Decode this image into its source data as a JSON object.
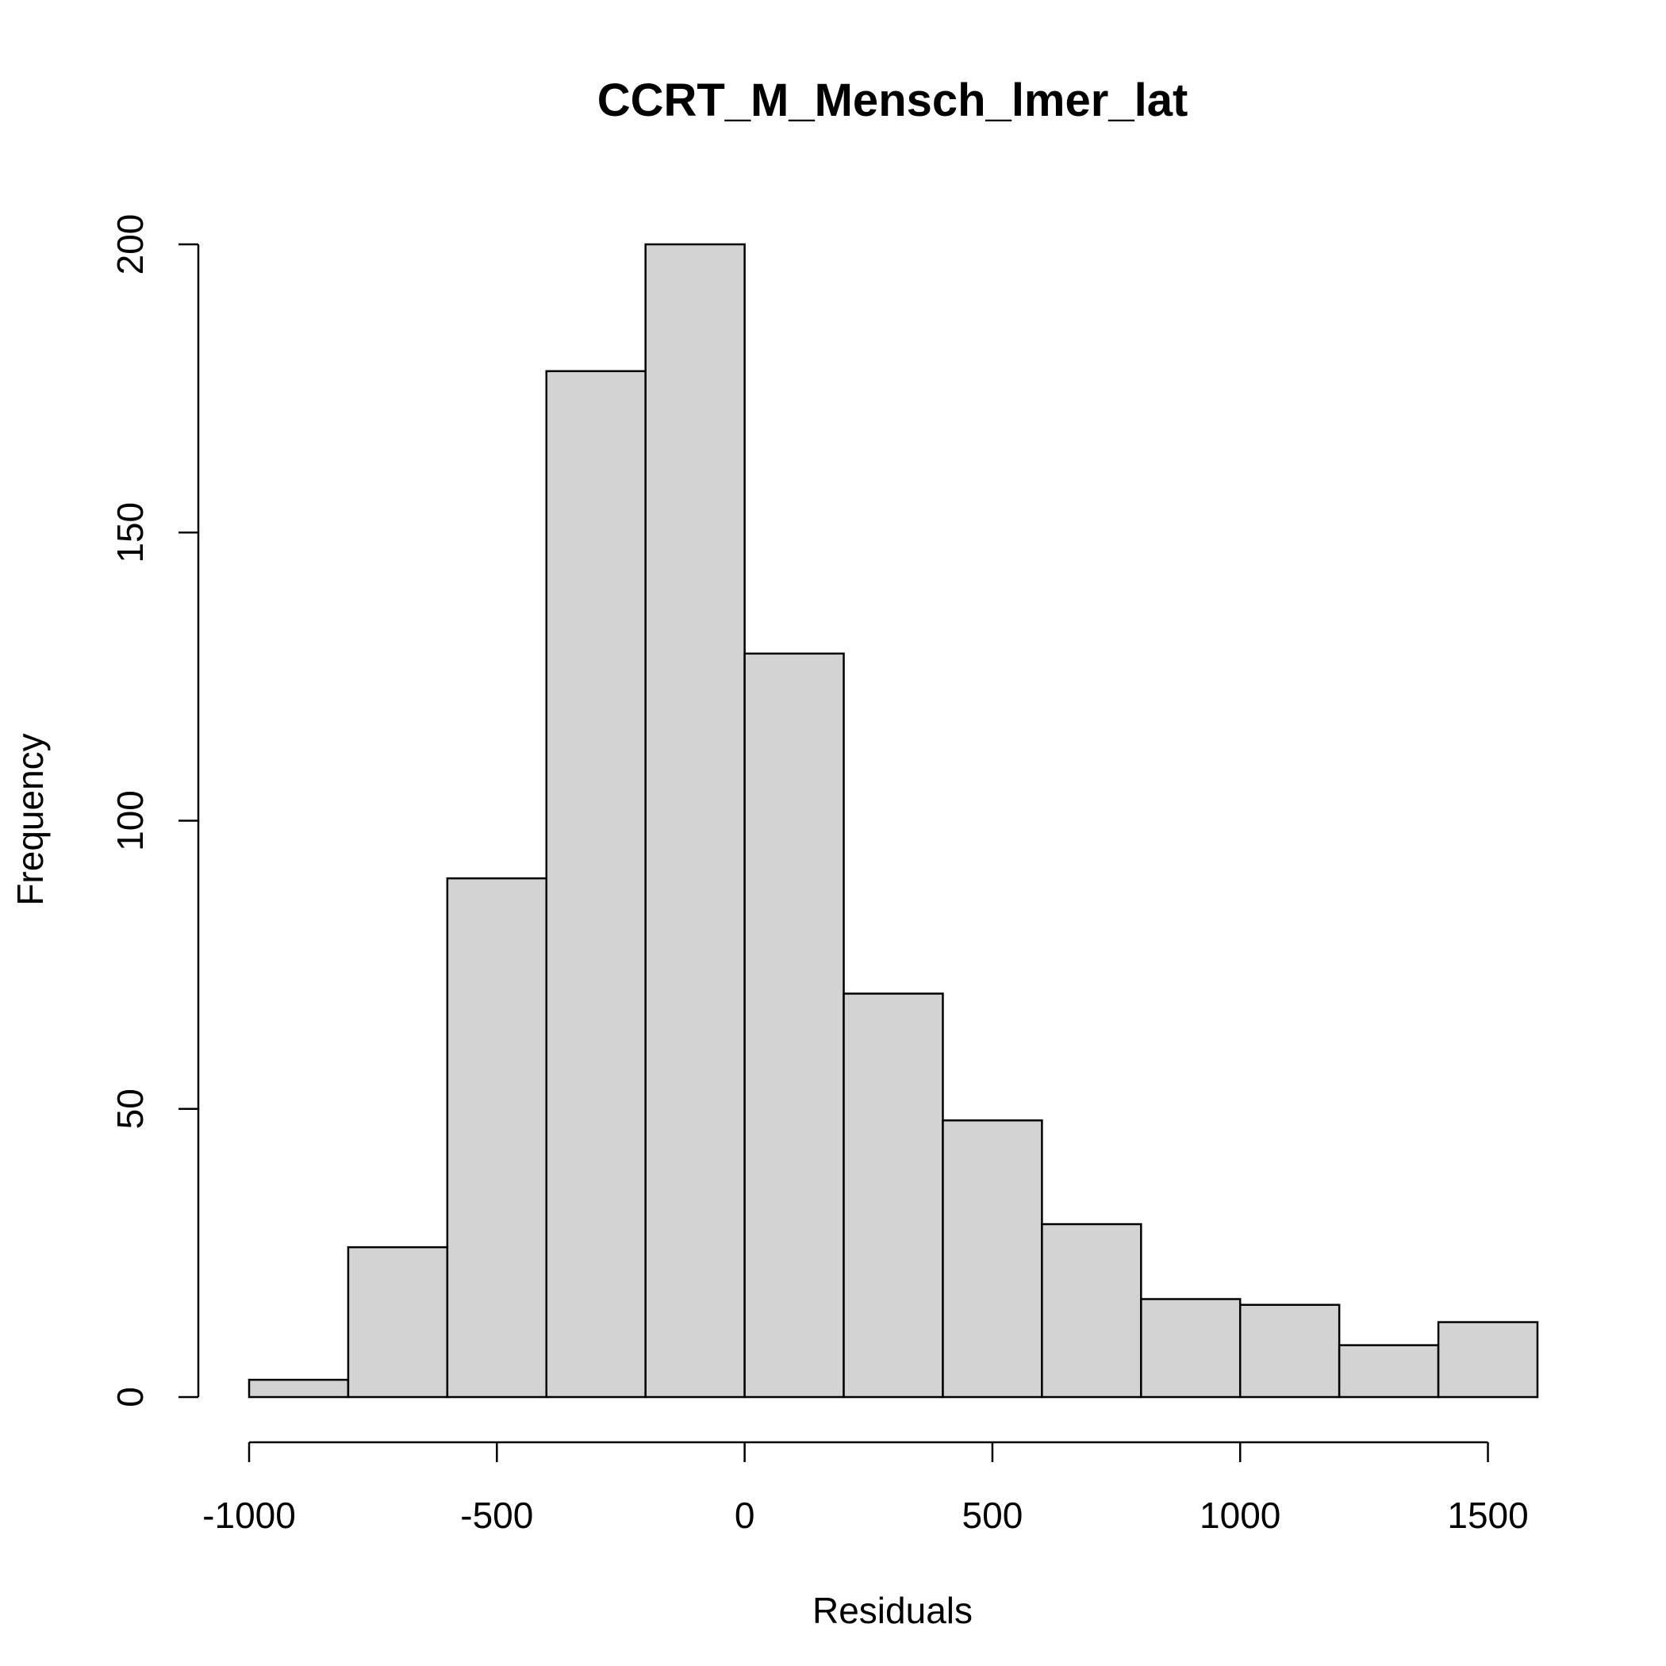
{
  "chart_data": {
    "type": "bar",
    "title": "CCRT_M_Mensch_lmer_lat",
    "xlabel": "Residuals",
    "ylabel": "Frequency",
    "bin_edges": [
      -1000,
      -800,
      -600,
      -400,
      -200,
      0,
      200,
      400,
      600,
      800,
      1000,
      1200,
      1400,
      1600
    ],
    "values": [
      3,
      26,
      90,
      178,
      200,
      129,
      70,
      48,
      30,
      17,
      16,
      9,
      13
    ],
    "x_ticks": [
      -1000,
      -500,
      0,
      500,
      1000,
      1500
    ],
    "x_tick_labels": [
      "-1000",
      "-500",
      "0",
      "500",
      "1000",
      "1500"
    ],
    "y_ticks": [
      0,
      50,
      100,
      150,
      200
    ],
    "y_tick_labels": [
      "0",
      "50",
      "100",
      "150",
      "200"
    ],
    "xlim": [
      -1000,
      1600
    ],
    "ylim": [
      0,
      200
    ],
    "bar_color": "#d3d3d3",
    "grid": false,
    "legend": "none"
  }
}
